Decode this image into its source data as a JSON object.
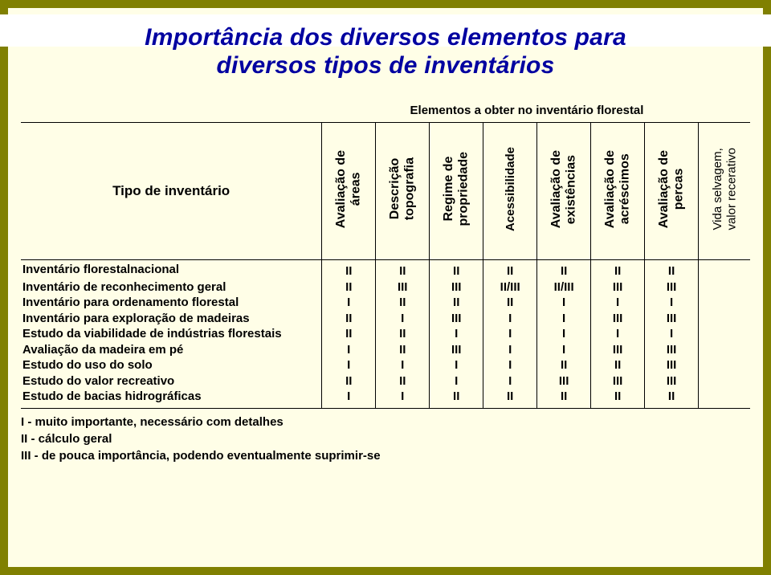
{
  "title": {
    "line1": "Importância dos diversos elementos para",
    "line2": "diversos tipos de inventários",
    "color": "#0000a0"
  },
  "table": {
    "super_header": "Elementos a obter no inventário florestal",
    "row_header_label": "Tipo de inventário",
    "columns": [
      "Avaliação de\náreas",
      "Descrição\ntopografia",
      "Regime de\npropriedade",
      "Acessibilidade",
      "Avaliação de\nexistências",
      "Avaliação de\nacréscimos",
      "Avaliação de\npercas"
    ],
    "tail_column": "Vida  selvagem,\nvalor  recerativo",
    "rows": [
      {
        "label": "Inventário florestalnacional",
        "values": [
          "II",
          "II",
          "II",
          "II",
          "II",
          "II",
          "II"
        ]
      },
      {
        "label": "Inventário de reconhecimento geral",
        "values": [
          "II",
          "III",
          "III",
          "II/III",
          "II/III",
          "III",
          "III"
        ]
      },
      {
        "label": "Inventário para ordenamento florestal",
        "values": [
          "I",
          "II",
          "II",
          "II",
          "I",
          "I",
          "I"
        ]
      },
      {
        "label": "Inventário para exploração de madeiras",
        "values": [
          "II",
          "I",
          "III",
          "I",
          "I",
          "III",
          "III"
        ]
      },
      {
        "label": "Estudo da viabilidade de indústrias florestais",
        "values": [
          "II",
          "II",
          "I",
          "I",
          "I",
          "I",
          "I"
        ]
      },
      {
        "label": "Avaliação da madeira em pé",
        "values": [
          "I",
          "II",
          "III",
          "I",
          "I",
          "III",
          "III"
        ]
      },
      {
        "label": "Estudo do uso do solo",
        "values": [
          "I",
          "I",
          "I",
          "I",
          "II",
          "II",
          "III"
        ]
      },
      {
        "label": "Estudo do valor recreativo",
        "values": [
          "II",
          "II",
          "I",
          "I",
          "III",
          "III",
          "III"
        ]
      },
      {
        "label": "Estudo de bacias hidrográficas",
        "values": [
          "I",
          "I",
          "II",
          "II",
          "II",
          "II",
          "II"
        ]
      }
    ]
  },
  "legend": {
    "l1": "I - muito importante, necessário com detalhes",
    "l2": "II - cálculo geral",
    "l3": "III - de pouca importância, podendo eventualmente suprimir-se"
  },
  "colors": {
    "outer_background": "#808001",
    "inner_background": "#fffee7",
    "border": "#000000",
    "shadow_bar": "#ffffff"
  }
}
